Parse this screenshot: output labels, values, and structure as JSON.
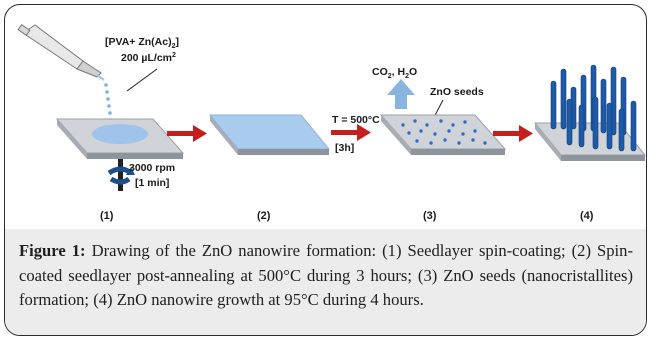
{
  "figure": {
    "reagent_label": "[PVA+ Zn(Ac)",
    "reagent_sub": "2",
    "reagent_close": "]",
    "dose_label": "200 µL/cm",
    "dose_sup": "2",
    "spin_speed": "3000 rpm",
    "spin_time": "[1 min]",
    "temperature": "T = 500°C",
    "anneal_time": "[3h]",
    "gas_label_co": "CO",
    "gas_label_co_sub": "2",
    "gas_label_h2o": ", H",
    "gas_label_h2o_sub": "2",
    "gas_label_o": "O",
    "seeds_label": "ZnO seeds",
    "steps": [
      "(1)",
      "(2)",
      "(3)",
      "(4)"
    ],
    "colors": {
      "substrate_top": "#cfd3d8",
      "substrate_side": "#8e949b",
      "film": "#9fc3ea",
      "arrow_red": "#c41e1e",
      "seed_blue": "#2f6ec9",
      "gas_arrow": "#8ab4e0",
      "nanowire": "#1f5aa8"
    }
  },
  "caption": {
    "label": "Figure 1:",
    "text": " Drawing of the ZnO nanowire formation: (1) Seedlayer spin-coating; (2) Spin-coated seedlayer post-annealing at 500°C during 3 hours; (3) ZnO seeds (nanocristallites) formation; (4) ZnO nanowire growth at 95°C during 4 hours."
  }
}
